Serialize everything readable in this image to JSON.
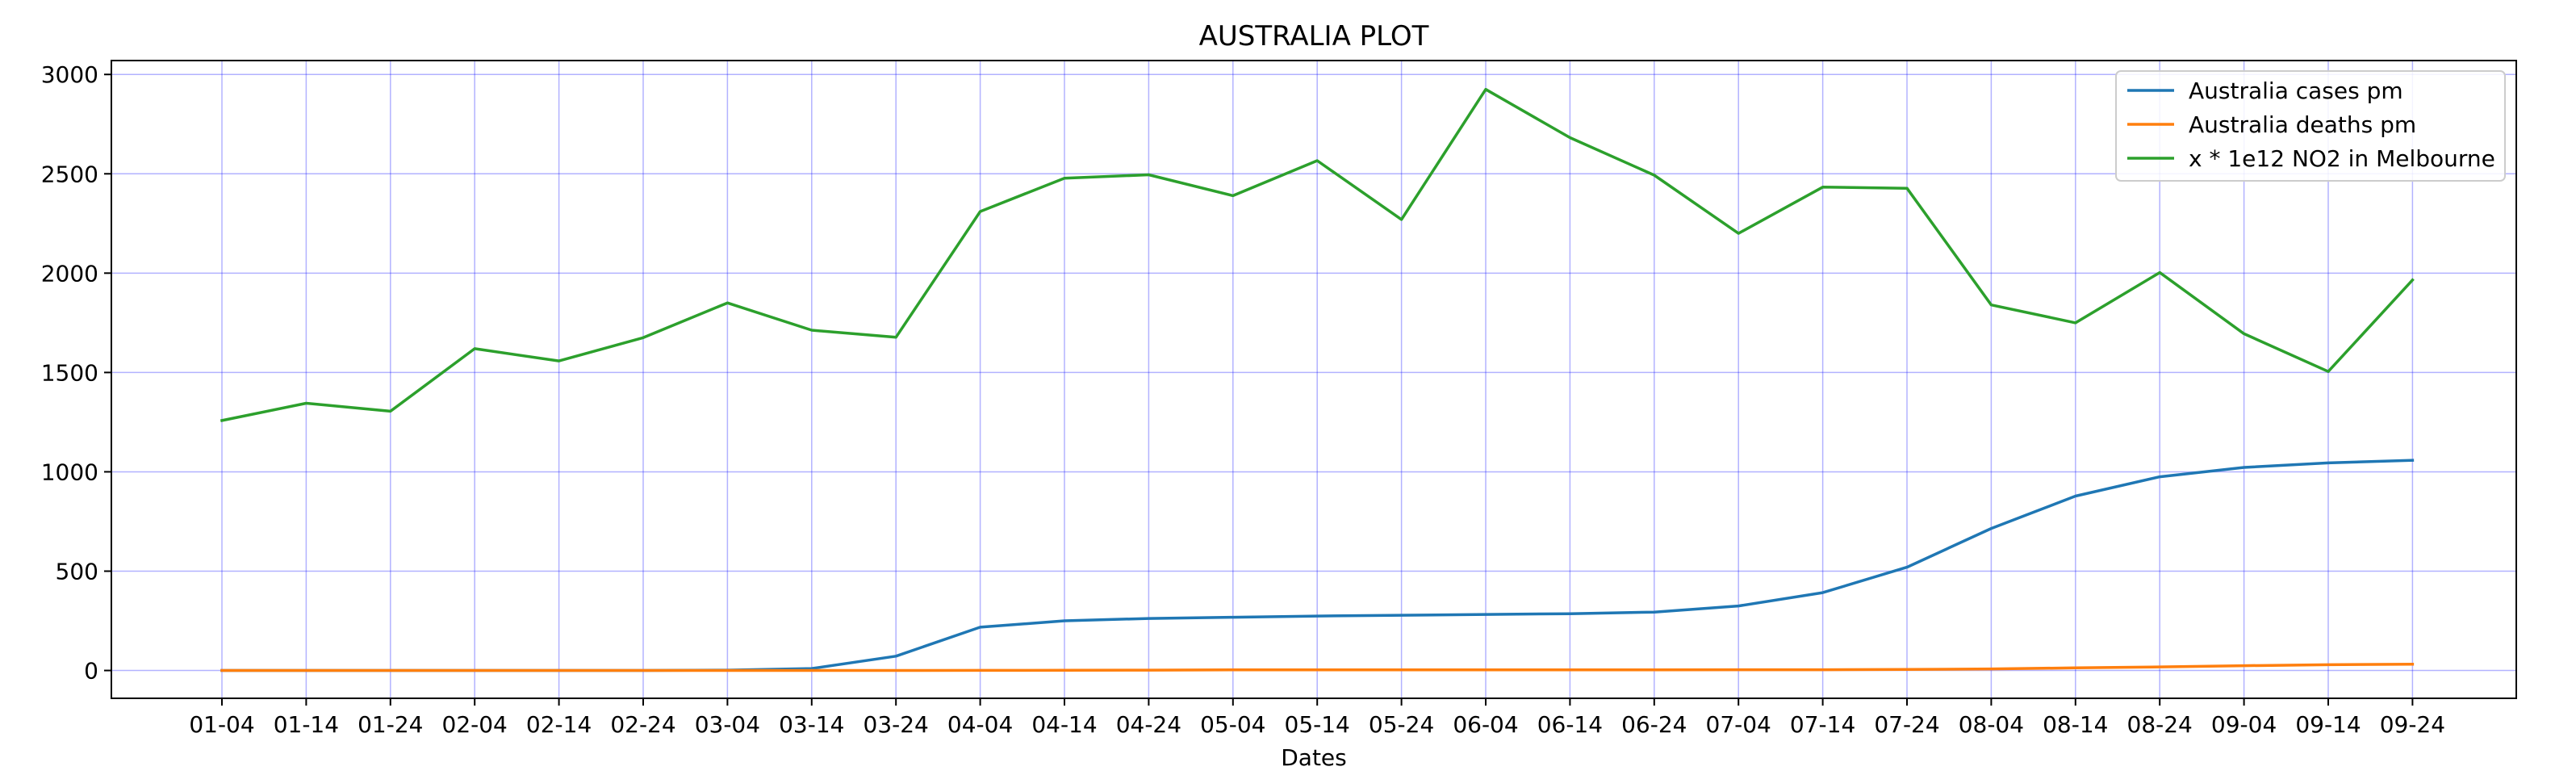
{
  "chart_data": {
    "type": "line",
    "title": "AUSTRALIA PLOT",
    "xlabel": "Dates",
    "ylabel": "",
    "x": [
      "01-04",
      "01-14",
      "01-24",
      "02-04",
      "02-14",
      "02-24",
      "03-04",
      "03-14",
      "03-24",
      "04-04",
      "04-14",
      "04-24",
      "05-04",
      "05-14",
      "05-24",
      "06-04",
      "06-14",
      "06-24",
      "07-04",
      "07-14",
      "07-24",
      "08-04",
      "08-14",
      "08-24",
      "09-04",
      "09-14",
      "09-24"
    ],
    "yticks": [
      0,
      500,
      1000,
      1500,
      2000,
      2500,
      3000
    ],
    "ylim": [
      -140,
      3070
    ],
    "grid": true,
    "grid_color": "#0000ff",
    "legend_position": "top-right",
    "series": [
      {
        "name": "Australia cases pm",
        "color": "#1f77b4",
        "values": [
          0,
          0,
          0,
          0,
          0,
          0,
          2,
          10,
          72,
          218,
          250,
          262,
          268,
          274,
          278,
          282,
          286,
          294,
          325,
          392,
          520,
          715,
          878,
          975,
          1022,
          1045,
          1058
        ]
      },
      {
        "name": "Australia deaths pm",
        "color": "#ff7f0e",
        "values": [
          0,
          0,
          0,
          0,
          0,
          0,
          0,
          0,
          0,
          0.5,
          1,
          2,
          3,
          3,
          3,
          3,
          3,
          3,
          4,
          4,
          5,
          8,
          13,
          18,
          24,
          29,
          32
        ]
      },
      {
        "name": "x * 1e12 NO2 in Melbourne",
        "color": "#2ca02c",
        "values": [
          1258,
          1345,
          1305,
          1620,
          1558,
          1675,
          1850,
          1713,
          1677,
          2310,
          2478,
          2495,
          2390,
          2566,
          2270,
          2925,
          2682,
          2493,
          2200,
          2433,
          2427,
          1840,
          1750,
          2003,
          1695,
          1505,
          1965
        ]
      }
    ]
  }
}
